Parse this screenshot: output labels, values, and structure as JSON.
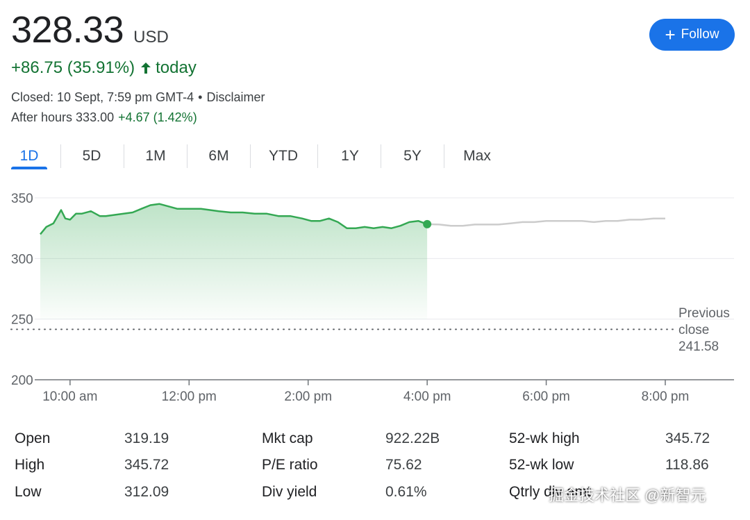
{
  "quote": {
    "price": "328.33",
    "currency": "USD",
    "change": "+86.75 (35.91%)",
    "change_suffix": "today",
    "closed_text": "Closed: 10 Sept, 7:59 pm GMT-4",
    "separator": "•",
    "disclaimer": "Disclaimer",
    "after_hours_label": "After hours 333.00",
    "after_hours_change": "+4.67 (1.42%)"
  },
  "follow_button": {
    "label": "Follow",
    "icon": "plus-icon"
  },
  "tabs": [
    {
      "label": "1D",
      "active": true
    },
    {
      "label": "5D",
      "active": false
    },
    {
      "label": "1M",
      "active": false
    },
    {
      "label": "6M",
      "active": false
    },
    {
      "label": "YTD",
      "active": false
    },
    {
      "label": "1Y",
      "active": false
    },
    {
      "label": "5Y",
      "active": false
    },
    {
      "label": "Max",
      "active": false
    }
  ],
  "colors": {
    "up_green": "#34a853",
    "text_green": "#137333",
    "after_hours_gray": "#cccccc",
    "accent_blue": "#1a73e8"
  },
  "previous_close": {
    "label_line1": "Previous",
    "label_line2": "close",
    "value": "241.58",
    "number": 241.58
  },
  "chart_data": {
    "type": "line",
    "y_ticks": [
      "350",
      "300",
      "250",
      "200"
    ],
    "ylim": [
      200,
      350
    ],
    "x_ticks": [
      "10:00 am",
      "12:00 pm",
      "2:00 pm",
      "4:00 pm",
      "6:00 pm",
      "8:00 pm"
    ],
    "x_tick_hours": [
      10,
      12,
      14,
      16,
      18,
      20
    ],
    "x_range_hours": [
      9.5,
      20.0
    ],
    "grid": true,
    "series": [
      {
        "session": "regular",
        "x": [
          9.5,
          9.6,
          9.72,
          9.85,
          9.92,
          10.0,
          10.1,
          10.2,
          10.35,
          10.5,
          10.6,
          10.75,
          10.9,
          11.05,
          11.2,
          11.35,
          11.5,
          11.65,
          11.8,
          11.9,
          12.05,
          12.2,
          12.35,
          12.5,
          12.7,
          12.9,
          13.1,
          13.3,
          13.5,
          13.7,
          13.9,
          14.05,
          14.2,
          14.35,
          14.5,
          14.65,
          14.8,
          14.95,
          15.1,
          15.25,
          15.4,
          15.55,
          15.7,
          15.85,
          16.0
        ],
        "y": [
          320,
          326,
          329,
          340,
          333,
          332,
          337,
          337,
          339,
          335,
          335,
          336,
          337,
          338,
          341,
          344,
          345,
          343,
          341,
          341,
          341,
          341,
          340,
          339,
          338,
          338,
          337,
          337,
          335,
          335,
          333,
          331,
          331,
          333,
          330,
          325,
          325,
          326,
          325,
          326,
          325,
          327,
          330,
          331,
          328.33
        ]
      },
      {
        "session": "after-hours",
        "x": [
          16.0,
          16.2,
          16.4,
          16.6,
          16.8,
          17.0,
          17.2,
          17.4,
          17.6,
          17.8,
          18.0,
          18.2,
          18.4,
          18.6,
          18.8,
          19.0,
          19.2,
          19.4,
          19.6,
          19.8,
          20.0
        ],
        "y": [
          328.33,
          328,
          327,
          327,
          328,
          328,
          328,
          329,
          330,
          330,
          331,
          331,
          331,
          331,
          330,
          331,
          331,
          332,
          332,
          333,
          333
        ]
      }
    ]
  },
  "stats": [
    [
      {
        "label": "Open",
        "value": "319.19"
      },
      {
        "label": "High",
        "value": "345.72"
      },
      {
        "label": "Low",
        "value": "312.09"
      }
    ],
    [
      {
        "label": "Mkt cap",
        "value": "922.22B"
      },
      {
        "label": "P/E ratio",
        "value": "75.62"
      },
      {
        "label": "Div yield",
        "value": "0.61%"
      }
    ],
    [
      {
        "label": "52-wk high",
        "value": "345.72"
      },
      {
        "label": "52-wk low",
        "value": "118.86"
      },
      {
        "label": "Qtrly div amt",
        "value": ""
      }
    ]
  ],
  "watermark": "掘金技术社区 @新智元"
}
